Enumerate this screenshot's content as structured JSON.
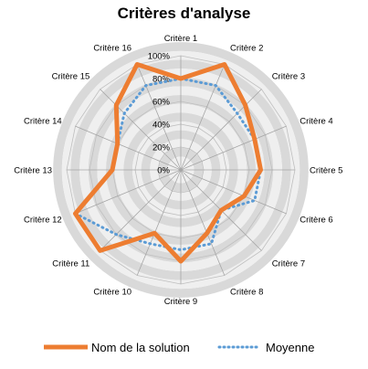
{
  "chart_data": {
    "type": "radar",
    "title": "Critères d'analyse",
    "categories": [
      "Critère 1",
      "Critère 2",
      "Critère 3",
      "Critère 4",
      "Critère 5",
      "Critère 6",
      "Critère 7",
      "Critère 8",
      "Critère 9",
      "Critère 10",
      "Critère 11",
      "Critère 12",
      "Critère 13",
      "Critère 14",
      "Critère 15",
      "Critère 16"
    ],
    "r_ticks": [
      "0%",
      "20%",
      "40%",
      "60%",
      "80%",
      "100%"
    ],
    "rlim": [
      0,
      1
    ],
    "grid": true,
    "legend_position": "bottom",
    "series": [
      {
        "name": "Nom de la solution",
        "color": "#ED7D31",
        "style": "solid",
        "values": [
          0.8,
          1.0,
          0.8,
          0.7,
          0.7,
          0.6,
          0.5,
          0.6,
          0.8,
          0.6,
          1.0,
          1.0,
          0.6,
          0.6,
          0.8,
          1.0
        ]
      },
      {
        "name": "Moyenne",
        "color": "#5B9BD5",
        "style": "dotted",
        "values": [
          0.8,
          0.8,
          0.7,
          0.7,
          0.7,
          0.7,
          0.5,
          0.7,
          0.7,
          0.7,
          0.8,
          1.0,
          0.6,
          0.6,
          0.7,
          0.8
        ]
      }
    ]
  }
}
